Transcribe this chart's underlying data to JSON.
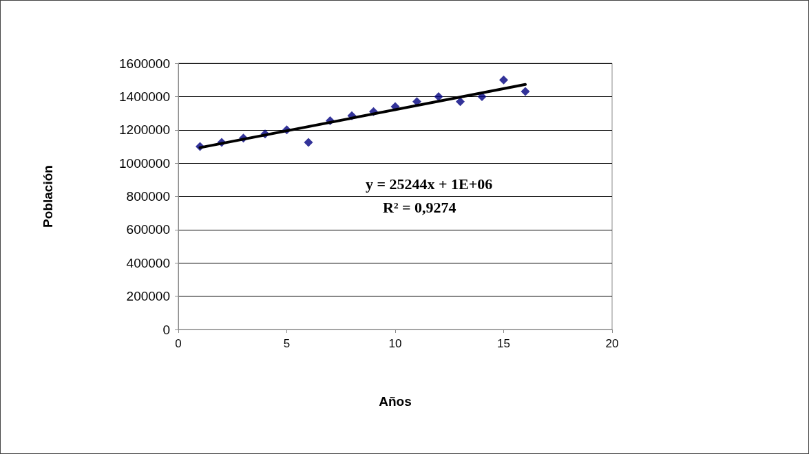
{
  "chart_data": {
    "type": "scatter",
    "xlabel": "Años",
    "ylabel": "Población",
    "marker": "diamond",
    "grid": "y",
    "xlim": [
      0,
      20
    ],
    "xticks": [
      0,
      5,
      10,
      15,
      20
    ],
    "ylim": [
      0,
      1600000
    ],
    "yticks": [
      0,
      200000,
      400000,
      600000,
      800000,
      1000000,
      1200000,
      1400000,
      1600000
    ],
    "series": [
      {
        "color": "#000080",
        "x": [
          1,
          2,
          3,
          4,
          5,
          6,
          7,
          8,
          9,
          10,
          11,
          12,
          13,
          14,
          15,
          16
        ],
        "values": [
          1100000,
          1125000,
          1150000,
          1175000,
          1200000,
          1125000,
          1255000,
          1285000,
          1310000,
          1340000,
          1370000,
          1400000,
          1370000,
          1400000,
          1500000,
          1430000
        ]
      },
      {
        "type": "line",
        "color": "#000000",
        "marker": "none",
        "x": [
          1,
          16
        ],
        "values": [
          1093000,
          1473000
        ]
      }
    ],
    "annotations": [
      "y = 25244x + 1E+06",
      "R² = 0,9274"
    ]
  }
}
